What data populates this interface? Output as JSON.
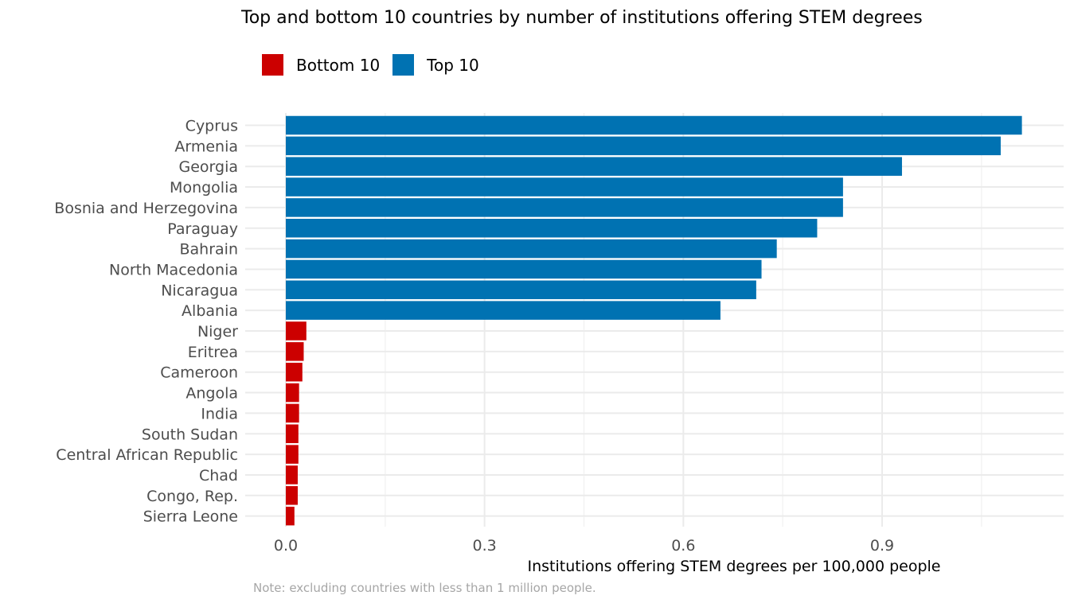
{
  "chart_data": {
    "type": "bar",
    "orientation": "horizontal",
    "title": "Top and bottom 10 countries by number of institutions offering STEM degrees",
    "xlabel": "Institutions offering STEM degrees per 100,000 people",
    "ylabel": "",
    "note": "Note: excluding countries with less than 1 million people.",
    "xlim": [
      0,
      1.11
    ],
    "x_ticks": [
      0.0,
      0.3,
      0.6,
      0.9
    ],
    "x_tick_labels": [
      "0.0",
      "0.3",
      "0.6",
      "0.9"
    ],
    "grid": true,
    "legend_position": "top-left",
    "legend": [
      {
        "name": "Bottom 10",
        "color": "#cc0000"
      },
      {
        "name": "Top 10",
        "color": "#0072b2"
      }
    ],
    "categories": [
      "Cyprus",
      "Armenia",
      "Georgia",
      "Mongolia",
      "Bosnia and Herzegovina",
      "Paraguay",
      "Bahrain",
      "North Macedonia",
      "Nicaragua",
      "Albania",
      "Niger",
      "Eritrea",
      "Cameroon",
      "Angola",
      "India",
      "South Sudan",
      "Central African Republic",
      "Chad",
      "Congo, Rep.",
      "Sierra Leone"
    ],
    "values": [
      1.111,
      1.079,
      0.93,
      0.841,
      0.841,
      0.802,
      0.741,
      0.718,
      0.71,
      0.656,
      0.031,
      0.027,
      0.025,
      0.02,
      0.02,
      0.019,
      0.019,
      0.018,
      0.018,
      0.013
    ],
    "groups": [
      "Top 10",
      "Top 10",
      "Top 10",
      "Top 10",
      "Top 10",
      "Top 10",
      "Top 10",
      "Top 10",
      "Top 10",
      "Top 10",
      "Bottom 10",
      "Bottom 10",
      "Bottom 10",
      "Bottom 10",
      "Bottom 10",
      "Bottom 10",
      "Bottom 10",
      "Bottom 10",
      "Bottom 10",
      "Bottom 10"
    ]
  }
}
